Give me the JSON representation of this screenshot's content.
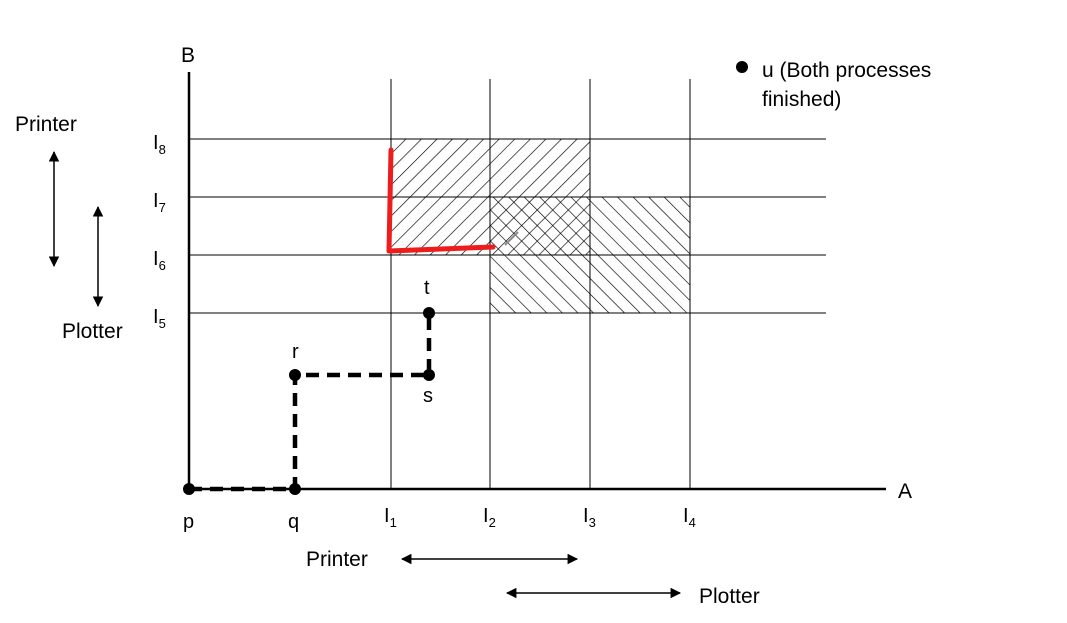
{
  "axes": {
    "x_label": "A",
    "y_label": "B"
  },
  "x_ticks": [
    {
      "base": "I",
      "sub": "1"
    },
    {
      "base": "I",
      "sub": "2"
    },
    {
      "base": "I",
      "sub": "3"
    },
    {
      "base": "I",
      "sub": "4"
    }
  ],
  "y_ticks": [
    {
      "base": "I",
      "sub": "5"
    },
    {
      "base": "I",
      "sub": "6"
    },
    {
      "base": "I",
      "sub": "7"
    },
    {
      "base": "I",
      "sub": "8"
    }
  ],
  "points": {
    "p": "p",
    "q": "q",
    "r": "r",
    "s": "s",
    "t": "t"
  },
  "legend": {
    "line1": "u (Both processes",
    "line2": "finished)"
  },
  "resources": {
    "printer_label": "Printer",
    "plotter_label": "Plotter"
  },
  "colors": {
    "trajectory_highlight": "#ee1c1c",
    "ink": "#000000",
    "background": "#ffffff"
  }
}
